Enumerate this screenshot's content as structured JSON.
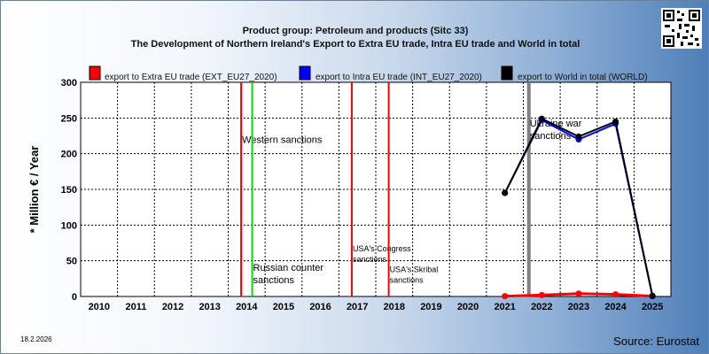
{
  "header": {
    "line1": "Product group: Petroleum and products (Sitc 33)",
    "line2": "The Development of Northern Ireland's Export to Extra EU trade, Intra EU trade and World in total"
  },
  "footer": {
    "date": "18.2.2026",
    "source": "Source: Eurostat"
  },
  "colors": {
    "extra": "#ff0000",
    "intra": "#0000ff",
    "world": "#000000",
    "green_marker": "#00dd00",
    "gray_marker": "#808080"
  },
  "chart_data": {
    "type": "line",
    "ylabel": "* Million € / Year",
    "ylim": [
      0,
      300
    ],
    "yticks": [
      0,
      50,
      100,
      150,
      200,
      250,
      300
    ],
    "x": [
      2010,
      2011,
      2012,
      2013,
      2014,
      2015,
      2016,
      2017,
      2018,
      2019,
      2020,
      2021,
      2022,
      2023,
      2024,
      2025
    ],
    "grid": true,
    "legend_position": "top",
    "series": [
      {
        "name": "export to Extra EU trade (EXT_EU27_2020)",
        "color": "#ff0000",
        "points": [
          [
            2021,
            0.5
          ],
          [
            2022,
            2
          ],
          [
            2023,
            4
          ],
          [
            2024,
            3
          ],
          [
            2025,
            0.5
          ]
        ]
      },
      {
        "name": "export to Intra EU trade (INT_EU27_2020)",
        "color": "#0000ff",
        "points": [
          [
            2021,
            145
          ],
          [
            2022,
            247
          ],
          [
            2023,
            220
          ],
          [
            2024,
            242
          ],
          [
            2025,
            0.5
          ]
        ]
      },
      {
        "name": "export to World in total (WORLD)",
        "color": "#000000",
        "points": [
          [
            2021,
            145
          ],
          [
            2022,
            249
          ],
          [
            2023,
            224
          ],
          [
            2024,
            245
          ],
          [
            2025,
            1
          ]
        ]
      }
    ],
    "events": [
      {
        "x": 2013.85,
        "color": "#ff0000",
        "label": "Western sanctions",
        "label_lines": [
          "Western sanctions"
        ],
        "label_y": 215
      },
      {
        "x": 2014.15,
        "color": "#00dd00",
        "label": "Russian counter sanctions",
        "label_lines": [
          "Russian counter",
          "sanctions"
        ],
        "label_y": 36
      },
      {
        "x": 2016.85,
        "color": "#ff0000",
        "label": "USA's Congress sanctions",
        "label_lines": [
          "USA's Congress",
          "sanctions"
        ],
        "label_y": 63,
        "small": true
      },
      {
        "x": 2017.85,
        "color": "#ff0000",
        "label": "USA's Skribal sanctions",
        "label_lines": [
          "USA's Skribal",
          "sanctions"
        ],
        "label_y": 34,
        "small": true
      },
      {
        "x": 2021.65,
        "color": "#808080",
        "label": "Ukraine war sanctions",
        "label_lines": [
          "Ukraine war",
          "sanctions"
        ],
        "label_y": 238
      }
    ]
  }
}
